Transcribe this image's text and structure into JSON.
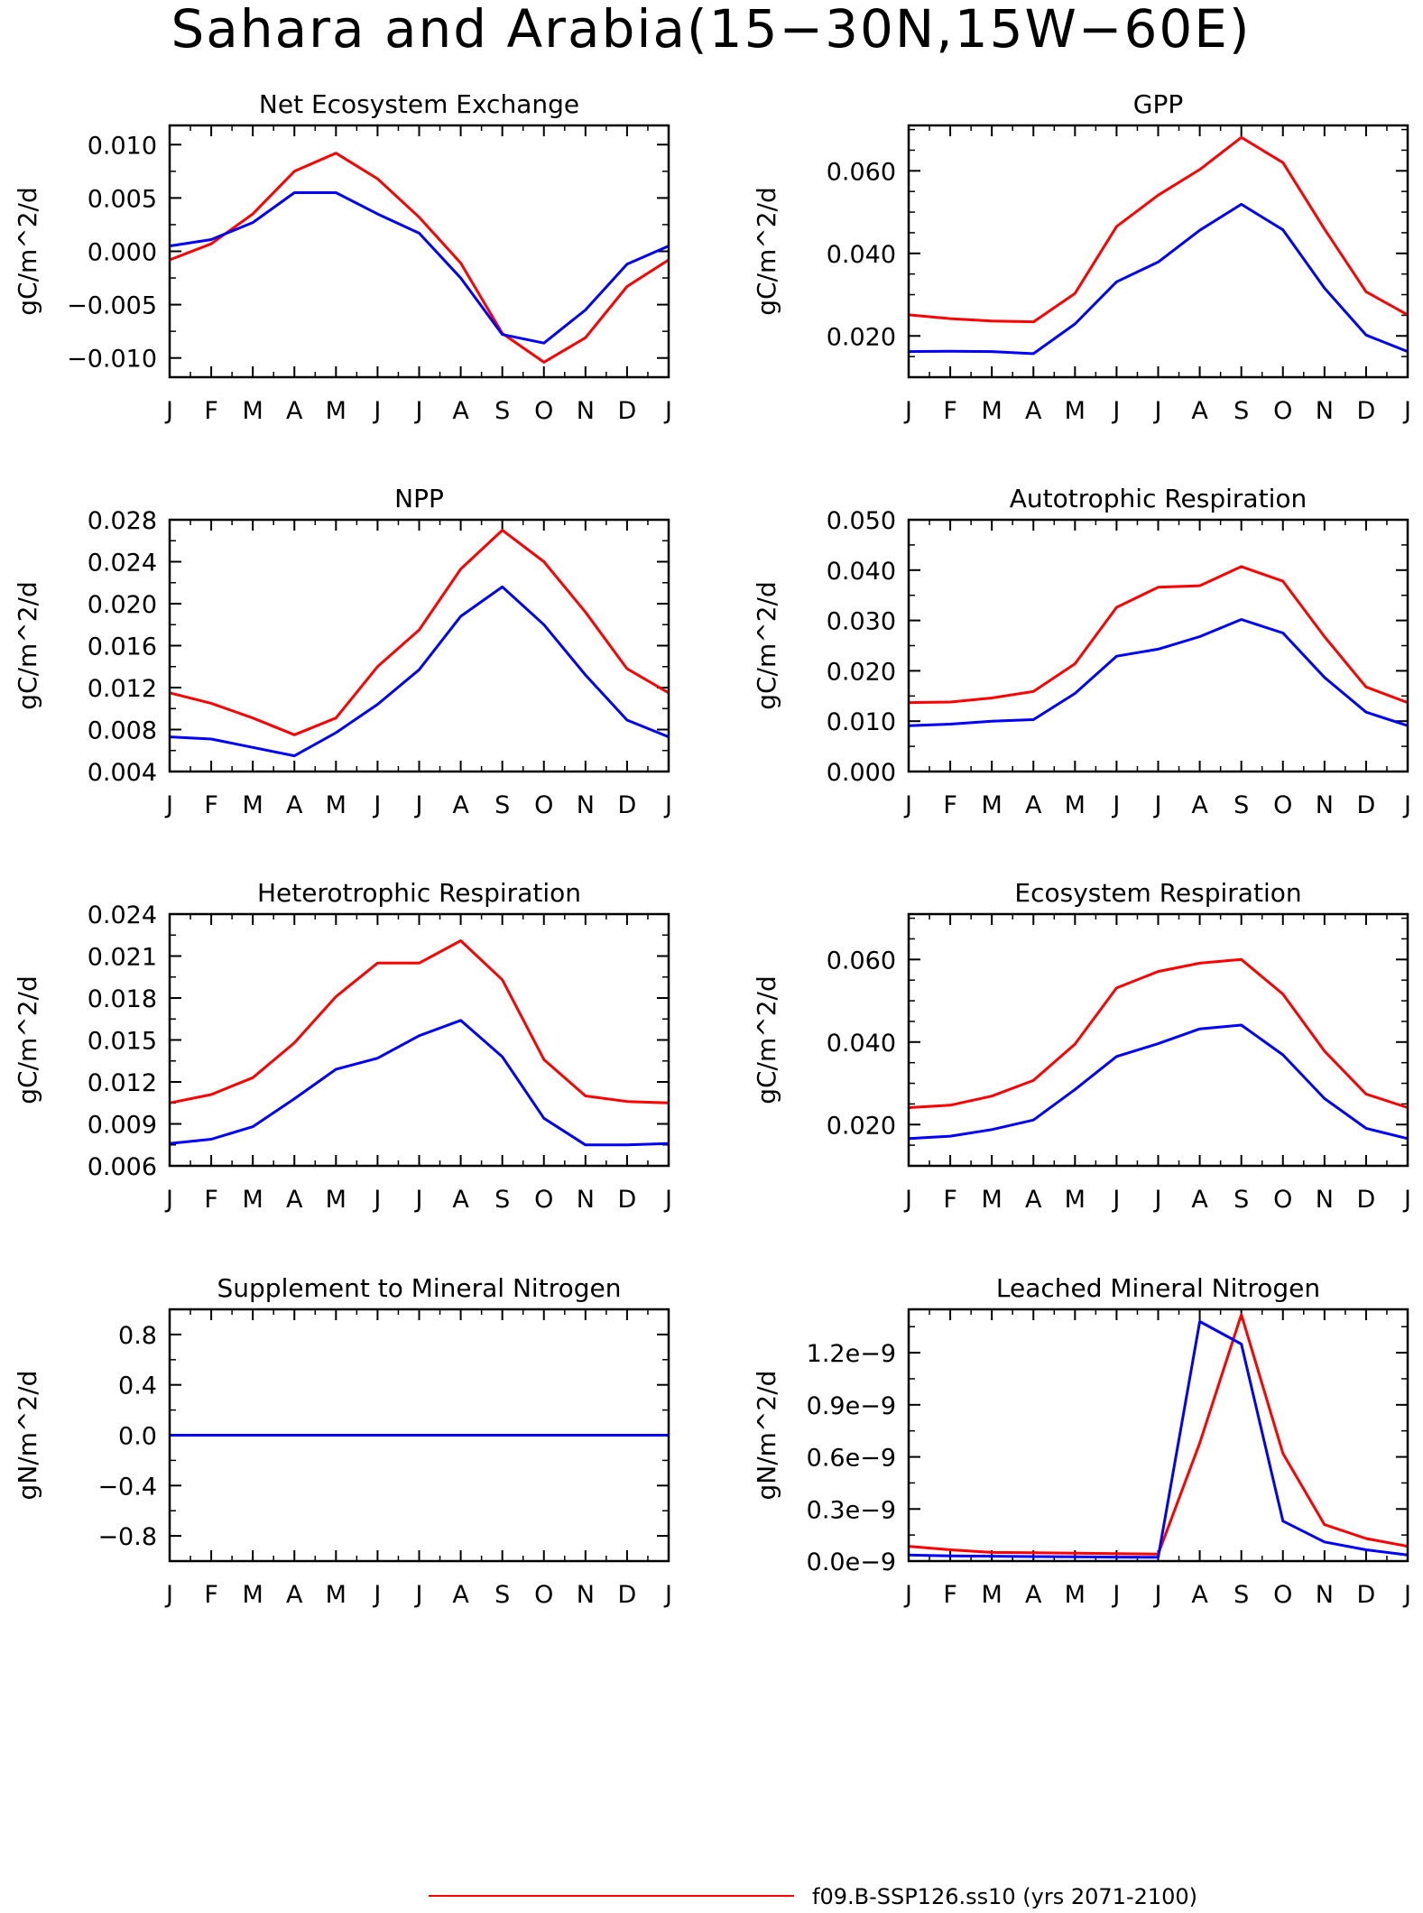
{
  "figure": {
    "title": "Sahara and Arabia(15−30N,15W−60E)",
    "colors": {
      "case1": "#ff0000",
      "case2": "#0000ff",
      "axes": "#000000",
      "background": "#ffffff"
    }
  },
  "legend": {
    "entries": [
      {
        "label": "f09.B-SSP126.ss10 (yrs 2071-2100)",
        "color": "#ff0000"
      }
    ]
  },
  "chart_data": [
    {
      "type": "line",
      "title": "Net Ecosystem Exchange",
      "ylabel": "gC/m^2/d",
      "xlabel": "",
      "categories": [
        "J",
        "F",
        "M",
        "A",
        "M",
        "J",
        "J",
        "A",
        "S",
        "O",
        "N",
        "D",
        "J"
      ],
      "ylim": [
        -0.0118,
        0.0118
      ],
      "yticks": [
        -0.01,
        -0.005,
        0,
        0.005,
        0.01
      ],
      "ytick_labels": [
        "−0.010",
        "−0.005",
        "0.000",
        "0.005",
        "0.010"
      ],
      "yminor_step": 0.0025,
      "series": [
        {
          "color": "#ff0000",
          "values": [
            -0.0008,
            0.0007,
            0.0035,
            0.0075,
            0.0092,
            0.0068,
            0.0032,
            -0.0011,
            -0.0077,
            -0.0104,
            -0.0081,
            -0.0033,
            -0.0008
          ]
        },
        {
          "color": "#0000ff",
          "values": [
            0.0005,
            0.0011,
            0.0027,
            0.0055,
            0.0055,
            0.0035,
            0.0017,
            -0.0025,
            -0.0078,
            -0.0086,
            -0.0055,
            -0.0012,
            0.0005
          ]
        }
      ]
    },
    {
      "type": "line",
      "title": "GPP",
      "ylabel": "gC/m^2/d",
      "xlabel": "",
      "categories": [
        "J",
        "F",
        "M",
        "A",
        "M",
        "J",
        "J",
        "A",
        "S",
        "O",
        "N",
        "D",
        "J"
      ],
      "ylim": [
        0.01,
        0.071
      ],
      "yticks": [
        0.02,
        0.04,
        0.06
      ],
      "ytick_labels": [
        "0.020",
        "0.040",
        "0.060"
      ],
      "yminor_step": 0.005,
      "series": [
        {
          "color": "#ff0000",
          "values": [
            0.0251,
            0.0242,
            0.0236,
            0.0234,
            0.0303,
            0.0465,
            0.0541,
            0.0603,
            0.0681,
            0.062,
            0.0459,
            0.0307,
            0.0251
          ]
        },
        {
          "color": "#0000ff",
          "values": [
            0.0162,
            0.0163,
            0.0162,
            0.0157,
            0.0229,
            0.0331,
            0.0379,
            0.0456,
            0.0519,
            0.0457,
            0.0316,
            0.0202,
            0.0162
          ]
        }
      ]
    },
    {
      "type": "line",
      "title": "NPP",
      "ylabel": "gC/m^2/d",
      "xlabel": "",
      "categories": [
        "J",
        "F",
        "M",
        "A",
        "M",
        "J",
        "J",
        "A",
        "S",
        "O",
        "N",
        "D",
        "J"
      ],
      "ylim": [
        0.004,
        0.028
      ],
      "yticks": [
        0.004,
        0.008,
        0.012,
        0.016,
        0.02,
        0.024,
        0.028
      ],
      "ytick_labels": [
        "0.004",
        "0.008",
        "0.012",
        "0.016",
        "0.020",
        "0.024",
        "0.028"
      ],
      "yminor_step": 0.002,
      "series": [
        {
          "color": "#ff0000",
          "values": [
            0.0115,
            0.0105,
            0.0091,
            0.0075,
            0.0091,
            0.014,
            0.0175,
            0.0233,
            0.027,
            0.024,
            0.0192,
            0.0138,
            0.0115
          ]
        },
        {
          "color": "#0000ff",
          "values": [
            0.0073,
            0.0071,
            0.0063,
            0.0055,
            0.0077,
            0.0104,
            0.0137,
            0.0188,
            0.0216,
            0.018,
            0.0132,
            0.0089,
            0.0073
          ]
        }
      ]
    },
    {
      "type": "line",
      "title": "Autotrophic Respiration",
      "ylabel": "gC/m^2/d",
      "xlabel": "",
      "categories": [
        "J",
        "F",
        "M",
        "A",
        "M",
        "J",
        "J",
        "A",
        "S",
        "O",
        "N",
        "D",
        "J"
      ],
      "ylim": [
        0,
        0.05
      ],
      "yticks": [
        0,
        0.01,
        0.02,
        0.03,
        0.04,
        0.05
      ],
      "ytick_labels": [
        "0.000",
        "0.010",
        "0.020",
        "0.030",
        "0.040",
        "0.050"
      ],
      "yminor_step": 0.005,
      "series": [
        {
          "color": "#ff0000",
          "values": [
            0.0137,
            0.0138,
            0.0146,
            0.0159,
            0.0214,
            0.0326,
            0.0366,
            0.0369,
            0.0407,
            0.0378,
            0.0268,
            0.0168,
            0.0137
          ]
        },
        {
          "color": "#0000ff",
          "values": [
            0.0091,
            0.0094,
            0.01,
            0.0103,
            0.0155,
            0.0229,
            0.0243,
            0.0268,
            0.0302,
            0.0275,
            0.0187,
            0.0118,
            0.0091
          ]
        }
      ]
    },
    {
      "type": "line",
      "title": "Heterotrophic Respiration",
      "ylabel": "gC/m^2/d",
      "xlabel": "",
      "categories": [
        "J",
        "F",
        "M",
        "A",
        "M",
        "J",
        "J",
        "A",
        "S",
        "O",
        "N",
        "D",
        "J"
      ],
      "ylim": [
        0.006,
        0.024
      ],
      "yticks": [
        0.006,
        0.009,
        0.012,
        0.015,
        0.018,
        0.021,
        0.024
      ],
      "ytick_labels": [
        "0.006",
        "0.009",
        "0.012",
        "0.015",
        "0.018",
        "0.021",
        "0.024"
      ],
      "yminor_step": 0.0015,
      "series": [
        {
          "color": "#ff0000",
          "values": [
            0.0105,
            0.0111,
            0.0123,
            0.0148,
            0.0181,
            0.0205,
            0.0205,
            0.0221,
            0.0193,
            0.0136,
            0.011,
            0.0106,
            0.0105
          ]
        },
        {
          "color": "#0000ff",
          "values": [
            0.0076,
            0.0079,
            0.0088,
            0.0108,
            0.0129,
            0.0137,
            0.0153,
            0.0164,
            0.0138,
            0.0094,
            0.0075,
            0.0075,
            0.0076
          ]
        }
      ]
    },
    {
      "type": "line",
      "title": "Ecosystem Respiration",
      "ylabel": "gC/m^2/d",
      "xlabel": "",
      "categories": [
        "J",
        "F",
        "M",
        "A",
        "M",
        "J",
        "J",
        "A",
        "S",
        "O",
        "N",
        "D",
        "J"
      ],
      "ylim": [
        0.01,
        0.071
      ],
      "yticks": [
        0.02,
        0.04,
        0.06
      ],
      "ytick_labels": [
        "0.020",
        "0.040",
        "0.060"
      ],
      "yminor_step": 0.005,
      "series": [
        {
          "color": "#ff0000",
          "values": [
            0.0241,
            0.0247,
            0.0269,
            0.0307,
            0.0395,
            0.0531,
            0.0571,
            0.0591,
            0.06,
            0.0516,
            0.0378,
            0.0274,
            0.0241
          ]
        },
        {
          "color": "#0000ff",
          "values": [
            0.0166,
            0.0172,
            0.0188,
            0.0211,
            0.0285,
            0.0365,
            0.0396,
            0.0432,
            0.0441,
            0.0369,
            0.0263,
            0.0191,
            0.0166
          ]
        }
      ]
    },
    {
      "type": "line",
      "title": "Supplement to Mineral Nitrogen",
      "ylabel": "gN/m^2/d",
      "xlabel": "",
      "categories": [
        "J",
        "F",
        "M",
        "A",
        "M",
        "J",
        "J",
        "A",
        "S",
        "O",
        "N",
        "D",
        "J"
      ],
      "ylim": [
        -1.0,
        1.0
      ],
      "yticks": [
        -0.8,
        -0.4,
        0,
        0.4,
        0.8
      ],
      "ytick_labels": [
        "−0.8",
        "−0.4",
        "0.0",
        "0.4",
        "0.8"
      ],
      "yminor_step": 0.2,
      "series": [
        {
          "color": "#ff0000",
          "values": [
            0,
            0,
            0,
            0,
            0,
            0,
            0,
            0,
            0,
            0,
            0,
            0,
            0
          ]
        },
        {
          "color": "#0000ff",
          "values": [
            0,
            0,
            0,
            0,
            0,
            0,
            0,
            0,
            0,
            0,
            0,
            0,
            0
          ]
        }
      ]
    },
    {
      "type": "line",
      "title": "Leached Mineral Nitrogen",
      "ylabel": "gN/m^2/d",
      "xlabel": "",
      "categories": [
        "J",
        "F",
        "M",
        "A",
        "M",
        "J",
        "J",
        "A",
        "S",
        "O",
        "N",
        "D",
        "J"
      ],
      "ylim": [
        0,
        1.45e-09
      ],
      "yticks": [
        0,
        3e-10,
        6e-10,
        9e-10,
        1.2e-09
      ],
      "ytick_labels": [
        "0.0e−9",
        "0.3e−9",
        "0.6e−9",
        "0.9e−9",
        "1.2e−9"
      ],
      "yminor_step": 1.5e-10,
      "series": [
        {
          "color": "#ff0000",
          "values": [
            8.5e-11,
            6.5e-11,
            5e-11,
            4.8e-11,
            4.5e-11,
            4.3e-11,
            4e-11,
            6.8e-10,
            1.42e-09,
            6.2e-10,
            2.1e-10,
            1.3e-10,
            8.5e-11
          ]
        },
        {
          "color": "#0000ff",
          "values": [
            3.5e-11,
            3e-11,
            2.8e-11,
            2.6e-11,
            2.5e-11,
            2.3e-11,
            2.2e-11,
            1.38e-09,
            1.25e-09,
            2.3e-10,
            1.1e-10,
            6.5e-11,
            3.5e-11
          ]
        }
      ]
    }
  ]
}
